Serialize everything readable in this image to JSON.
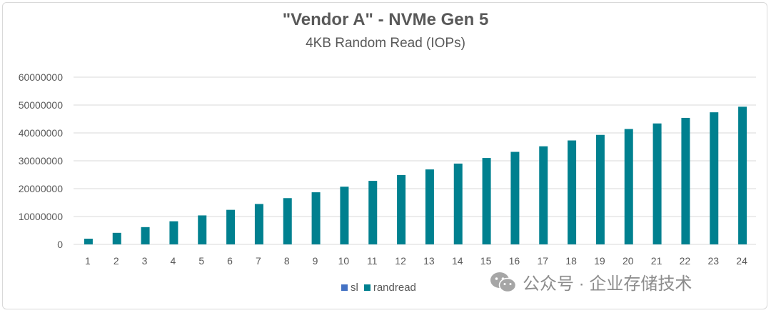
{
  "colors": {
    "sl": "#4472c4",
    "randread": "#00808f",
    "grid": "#d9d9d9",
    "text": "#595959"
  },
  "watermark": {
    "text": "公众号 · 企业存储技术",
    "icon": "wechat-icon"
  },
  "chart_data": {
    "type": "bar",
    "title": "\"Vendor A\" - NVMe Gen 5",
    "subtitle": "4KB Random  Read (IOPs)",
    "xlabel": "",
    "ylabel": "",
    "categories": [
      "1",
      "2",
      "3",
      "4",
      "5",
      "6",
      "7",
      "8",
      "9",
      "10",
      "11",
      "12",
      "13",
      "14",
      "15",
      "16",
      "17",
      "18",
      "19",
      "20",
      "21",
      "22",
      "23",
      "24"
    ],
    "ylim": [
      0,
      60000000
    ],
    "yticks": [
      "0",
      "10000000",
      "20000000",
      "30000000",
      "40000000",
      "50000000",
      "60000000"
    ],
    "grid": true,
    "legend_position": "bottom",
    "series": [
      {
        "name": "sl",
        "values": [
          0,
          0,
          0,
          0,
          0,
          0,
          0,
          0,
          0,
          0,
          0,
          0,
          0,
          0,
          0,
          0,
          0,
          0,
          0,
          0,
          0,
          0,
          0,
          0
        ]
      },
      {
        "name": "randread",
        "values": [
          2050000,
          4150000,
          6200000,
          8300000,
          10400000,
          12400000,
          14500000,
          16600000,
          18700000,
          20700000,
          22800000,
          24900000,
          26900000,
          29000000,
          31000000,
          33200000,
          35200000,
          37300000,
          39300000,
          41400000,
          43400000,
          45400000,
          47400000,
          49400000
        ]
      }
    ]
  }
}
